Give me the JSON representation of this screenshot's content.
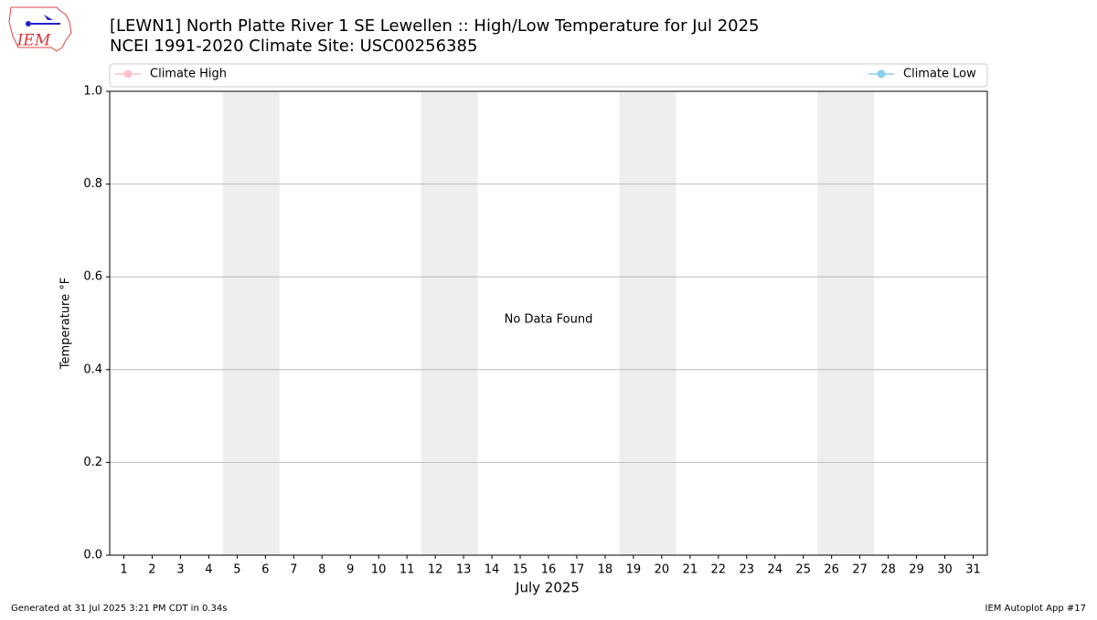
{
  "logo_text": "IEM",
  "chart_data": {
    "type": "line",
    "title": "[LEWN1] North Platte River 1 SE Lewellen :: High/Low Temperature for Jul 2025",
    "subtitle": "NCEI 1991-2020 Climate Site: USC00256385",
    "xlabel": "July 2025",
    "ylabel": "Temperature °F",
    "annotation": "No Data Found",
    "footer_left": "Generated at 31 Jul 2025 3:21 PM CDT in 0.34s",
    "footer_right": "IEM Autoplot App #17",
    "xlim": [
      0.5,
      31.5
    ],
    "xticks": [
      1,
      2,
      3,
      4,
      5,
      6,
      7,
      8,
      9,
      10,
      11,
      12,
      13,
      14,
      15,
      16,
      17,
      18,
      19,
      20,
      21,
      22,
      23,
      24,
      25,
      26,
      27,
      28,
      29,
      30,
      31
    ],
    "ylim": [
      0,
      1
    ],
    "yticks": [
      {
        "value": 0,
        "label": "0.0"
      },
      {
        "value": 0.2,
        "label": "0.2"
      },
      {
        "value": 0.4,
        "label": "0.4"
      },
      {
        "value": 0.6,
        "label": "0.6"
      },
      {
        "value": 0.8,
        "label": "0.8"
      },
      {
        "value": 1,
        "label": "1.0"
      }
    ],
    "grid": true,
    "shaded_spans": [
      [
        4.5,
        6.5
      ],
      [
        11.5,
        13.5
      ],
      [
        18.5,
        20.5
      ],
      [
        25.5,
        27.5
      ]
    ],
    "series": [
      {
        "name": "Climate High",
        "color": "#ffc0cb",
        "values": []
      },
      {
        "name": "Climate Low",
        "color": "#87ceeb",
        "values": []
      }
    ]
  }
}
